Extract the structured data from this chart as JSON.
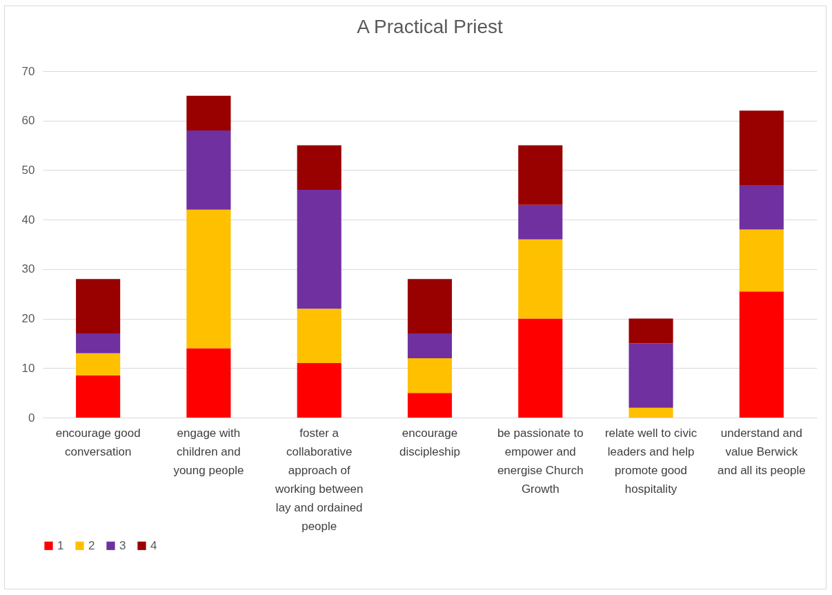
{
  "chart_data": {
    "type": "bar",
    "title": "A Practical Priest",
    "stacked": true,
    "categories": [
      "encourage good conversation",
      "engage with children and young people",
      "foster a collaborative approach of working between lay and ordained people",
      "encourage discipleship",
      "be passionate to empower and energise Church Growth",
      "relate well to civic leaders and help promote good hospitality",
      "understand and value Berwick and all its people"
    ],
    "series": [
      {
        "name": "1",
        "color": "#ff0000",
        "values": [
          8.5,
          14,
          11,
          5,
          20,
          0,
          25.5
        ]
      },
      {
        "name": "2",
        "color": "#ffc000",
        "values": [
          4.5,
          28,
          11,
          7,
          16,
          2,
          12.5
        ]
      },
      {
        "name": "3",
        "color": "#7030a0",
        "values": [
          4,
          16,
          24,
          5,
          7,
          13,
          9
        ]
      },
      {
        "name": "4",
        "color": "#990000",
        "values": [
          11,
          7,
          9,
          11,
          12,
          5,
          15
        ]
      }
    ],
    "ylim": [
      0,
      70
    ],
    "yticks": [
      0,
      10,
      20,
      30,
      40,
      50,
      60,
      70
    ],
    "grid": "y",
    "legend": "bottom"
  }
}
